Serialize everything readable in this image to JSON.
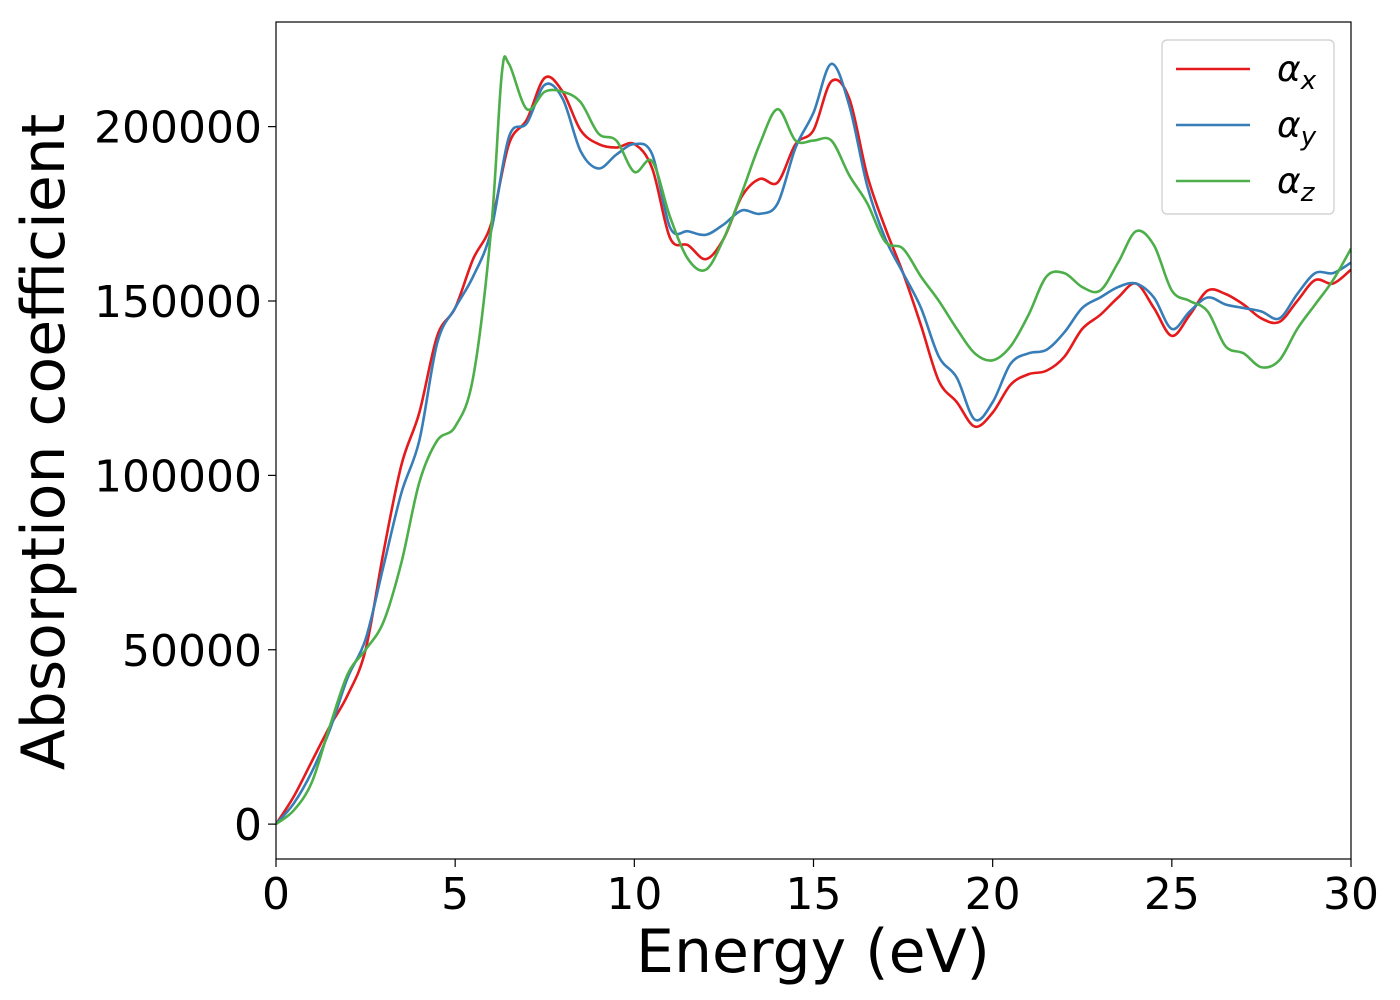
{
  "chart_data": {
    "type": "line",
    "title": "",
    "xlabel": "Energy (eV)",
    "ylabel": "Absorption coefficient",
    "xlim": [
      0,
      30
    ],
    "ylim": [
      -10000,
      230000
    ],
    "x_ticks": [
      0,
      5,
      10,
      15,
      20,
      25,
      30
    ],
    "x_tick_labels": [
      "0",
      "5",
      "10",
      "15",
      "20",
      "25",
      "30"
    ],
    "y_ticks": [
      0,
      50000,
      100000,
      150000,
      200000
    ],
    "y_tick_labels": [
      "0",
      "50000",
      "100000",
      "150000",
      "200000"
    ],
    "grid": false,
    "legend_position": "top-right",
    "series": [
      {
        "name": "αx",
        "symbol": "α",
        "subscript": "x",
        "color": "#e41a1c",
        "points": [
          [
            0,
            0
          ],
          [
            0.5,
            8000
          ],
          [
            1,
            18000
          ],
          [
            1.5,
            28000
          ],
          [
            2,
            37000
          ],
          [
            2.5,
            50000
          ],
          [
            3,
            78000
          ],
          [
            3.5,
            103000
          ],
          [
            4,
            118000
          ],
          [
            4.5,
            140000
          ],
          [
            5,
            148000
          ],
          [
            5.5,
            162000
          ],
          [
            6,
            172000
          ],
          [
            6.5,
            195000
          ],
          [
            7,
            202000
          ],
          [
            7.5,
            214000
          ],
          [
            8,
            210000
          ],
          [
            8.5,
            199000
          ],
          [
            9,
            195000
          ],
          [
            9.5,
            194000
          ],
          [
            10,
            195000
          ],
          [
            10.5,
            188000
          ],
          [
            11,
            168000
          ],
          [
            11.5,
            166000
          ],
          [
            12,
            162000
          ],
          [
            12.5,
            168000
          ],
          [
            13,
            180000
          ],
          [
            13.5,
            185000
          ],
          [
            14,
            184000
          ],
          [
            14.5,
            195000
          ],
          [
            15,
            199000
          ],
          [
            15.5,
            213000
          ],
          [
            16,
            208000
          ],
          [
            16.5,
            186000
          ],
          [
            17,
            171000
          ],
          [
            17.5,
            158000
          ],
          [
            18,
            143000
          ],
          [
            18.5,
            127000
          ],
          [
            19,
            121000
          ],
          [
            19.5,
            114000
          ],
          [
            20,
            118000
          ],
          [
            20.5,
            126000
          ],
          [
            21,
            129000
          ],
          [
            21.5,
            130000
          ],
          [
            22,
            134000
          ],
          [
            22.5,
            142000
          ],
          [
            23,
            146000
          ],
          [
            23.5,
            151000
          ],
          [
            24,
            155000
          ],
          [
            24.5,
            148000
          ],
          [
            25,
            140000
          ],
          [
            25.5,
            146000
          ],
          [
            26,
            153000
          ],
          [
            26.5,
            152000
          ],
          [
            27,
            149000
          ],
          [
            27.5,
            145000
          ],
          [
            28,
            144000
          ],
          [
            28.5,
            150000
          ],
          [
            29,
            156000
          ],
          [
            29.5,
            155000
          ],
          [
            30,
            159000
          ]
        ]
      },
      {
        "name": "αy",
        "symbol": "α",
        "subscript": "y",
        "color": "#377eb8",
        "points": [
          [
            0,
            0
          ],
          [
            0.5,
            6000
          ],
          [
            1,
            15000
          ],
          [
            1.5,
            27000
          ],
          [
            2,
            42000
          ],
          [
            2.5,
            53000
          ],
          [
            3,
            74000
          ],
          [
            3.5,
            95000
          ],
          [
            4,
            110000
          ],
          [
            4.5,
            138000
          ],
          [
            5,
            148000
          ],
          [
            5.5,
            157000
          ],
          [
            6,
            170000
          ],
          [
            6.5,
            197000
          ],
          [
            7,
            201000
          ],
          [
            7.5,
            212000
          ],
          [
            8,
            208000
          ],
          [
            8.5,
            193000
          ],
          [
            9,
            188000
          ],
          [
            9.5,
            192000
          ],
          [
            10,
            195000
          ],
          [
            10.5,
            192000
          ],
          [
            11,
            171000
          ],
          [
            11.5,
            170000
          ],
          [
            12,
            169000
          ],
          [
            12.5,
            172000
          ],
          [
            13,
            176000
          ],
          [
            13.5,
            175000
          ],
          [
            14,
            178000
          ],
          [
            14.5,
            194000
          ],
          [
            15,
            204000
          ],
          [
            15.5,
            218000
          ],
          [
            16,
            206000
          ],
          [
            16.5,
            183000
          ],
          [
            17,
            168000
          ],
          [
            17.5,
            158000
          ],
          [
            18,
            148000
          ],
          [
            18.5,
            134000
          ],
          [
            19,
            128000
          ],
          [
            19.5,
            116000
          ],
          [
            20,
            121000
          ],
          [
            20.5,
            132000
          ],
          [
            21,
            135000
          ],
          [
            21.5,
            136000
          ],
          [
            22,
            141000
          ],
          [
            22.5,
            148000
          ],
          [
            23,
            151000
          ],
          [
            23.5,
            154000
          ],
          [
            24,
            155000
          ],
          [
            24.5,
            151000
          ],
          [
            25,
            142000
          ],
          [
            25.5,
            147000
          ],
          [
            26,
            151000
          ],
          [
            26.5,
            149000
          ],
          [
            27,
            148000
          ],
          [
            27.5,
            147000
          ],
          [
            28,
            145000
          ],
          [
            28.5,
            152000
          ],
          [
            29,
            158000
          ],
          [
            29.5,
            158000
          ],
          [
            30,
            161000
          ]
        ]
      },
      {
        "name": "αz",
        "symbol": "α",
        "subscript": "z",
        "color": "#4daf4a",
        "points": [
          [
            0,
            0
          ],
          [
            0.5,
            4000
          ],
          [
            1,
            12000
          ],
          [
            1.5,
            28000
          ],
          [
            2,
            43000
          ],
          [
            2.5,
            50000
          ],
          [
            3,
            58000
          ],
          [
            3.5,
            75000
          ],
          [
            4,
            98000
          ],
          [
            4.5,
            110000
          ],
          [
            5,
            114000
          ],
          [
            5.5,
            128000
          ],
          [
            6,
            170000
          ],
          [
            6.3,
            215000
          ],
          [
            6.5,
            218000
          ],
          [
            7,
            205000
          ],
          [
            7.5,
            210000
          ],
          [
            8,
            210000
          ],
          [
            8.5,
            207000
          ],
          [
            9,
            198000
          ],
          [
            9.5,
            196000
          ],
          [
            10,
            187000
          ],
          [
            10.5,
            190000
          ],
          [
            11,
            174000
          ],
          [
            11.5,
            162000
          ],
          [
            12,
            159000
          ],
          [
            12.5,
            168000
          ],
          [
            13,
            181000
          ],
          [
            13.5,
            195000
          ],
          [
            14,
            205000
          ],
          [
            14.5,
            196000
          ],
          [
            15,
            196000
          ],
          [
            15.5,
            196000
          ],
          [
            16,
            186000
          ],
          [
            16.5,
            178000
          ],
          [
            17,
            167000
          ],
          [
            17.5,
            165000
          ],
          [
            18,
            157000
          ],
          [
            18.5,
            150000
          ],
          [
            19,
            142000
          ],
          [
            19.5,
            135000
          ],
          [
            20,
            133000
          ],
          [
            20.5,
            137000
          ],
          [
            21,
            146000
          ],
          [
            21.5,
            157000
          ],
          [
            22,
            158000
          ],
          [
            22.5,
            154000
          ],
          [
            23,
            153000
          ],
          [
            23.5,
            161000
          ],
          [
            24,
            170000
          ],
          [
            24.5,
            166000
          ],
          [
            25,
            153000
          ],
          [
            25.5,
            150000
          ],
          [
            26,
            147000
          ],
          [
            26.5,
            137000
          ],
          [
            27,
            135000
          ],
          [
            27.5,
            131000
          ],
          [
            28,
            133000
          ],
          [
            28.5,
            142000
          ],
          [
            29,
            149000
          ],
          [
            29.5,
            156000
          ],
          [
            30,
            165000
          ]
        ]
      }
    ]
  }
}
